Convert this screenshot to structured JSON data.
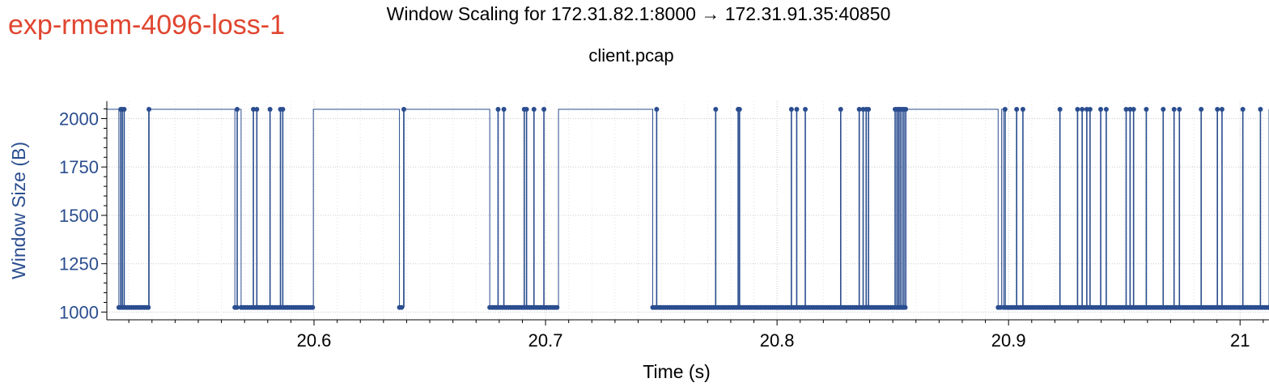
{
  "header": {
    "experiment": "exp-rmem-4096-loss-1",
    "title": "Window Scaling for 172.31.82.1:8000 → 172.31.91.35:40850",
    "subtitle": "client.pcap"
  },
  "colors": {
    "series": "#2a4d8f",
    "experiment": "#e0452f",
    "grid": "#c8c8c8"
  },
  "chart_data": {
    "type": "line",
    "xlabel": "Time (s)",
    "ylabel": "Window Size (B)",
    "xlim": [
      20.5105,
      21.0125
    ],
    "ylim": [
      960,
      2090
    ],
    "x_ticks": [
      20.6,
      20.7,
      20.8,
      20.9,
      21
    ],
    "x_tick_labels": [
      "20.6",
      "20.7",
      "20.8",
      "20.9",
      "21"
    ],
    "y_ticks": [
      1000,
      1250,
      1500,
      1750,
      2000
    ],
    "y_tick_labels": [
      "1000",
      "1250",
      "1500",
      "1750",
      "2000"
    ],
    "grid": true,
    "high_value": 2048,
    "low_value": 1024,
    "series": [
      {
        "style": "step",
        "low_intervals": [
          [
            20.5157,
            20.5286
          ],
          [
            20.5658,
            20.5668
          ],
          [
            20.5685,
            20.5997
          ],
          [
            20.6369,
            20.6387
          ],
          [
            20.6759,
            20.7056
          ],
          [
            20.7463,
            20.8557
          ],
          [
            20.8955,
            20.897
          ],
          [
            20.8978,
            21.0125
          ]
        ],
        "spikes": [
          20.5165,
          20.5172,
          20.518,
          20.5287,
          20.5668,
          20.5738,
          20.5753,
          20.581,
          20.5855,
          20.5865,
          20.6388,
          20.6795,
          20.682,
          20.6908,
          20.6918,
          20.695,
          20.6993,
          20.748,
          20.7735,
          20.7832,
          20.7838,
          20.8062,
          20.8085,
          20.8122,
          20.8275,
          20.8355,
          20.8372,
          20.8385,
          20.8395,
          20.851,
          20.8518,
          20.8525,
          20.8532,
          20.854,
          20.8548,
          20.8556,
          20.8985,
          20.9035,
          20.9062,
          20.9222,
          20.9298,
          20.9318,
          20.9338,
          20.9352,
          20.9398,
          20.9422,
          20.9508,
          20.9525,
          20.954,
          20.9595,
          20.9668,
          20.9715,
          20.9738,
          20.9832,
          20.9902,
          20.9922,
          21.0012,
          21.0088
        ]
      }
    ]
  }
}
